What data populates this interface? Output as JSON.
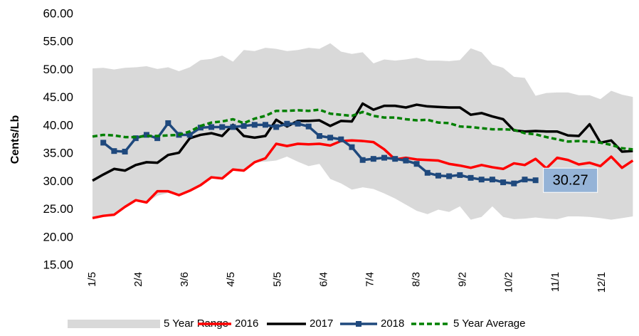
{
  "chart_data": {
    "type": "line",
    "y_label": "Cents/Lb",
    "x": [
      5,
      12,
      19,
      26,
      33,
      40,
      47,
      54,
      61,
      68,
      75,
      82,
      89,
      96,
      103,
      110,
      117,
      124,
      131,
      138,
      145,
      152,
      159,
      166,
      173,
      180,
      187,
      194,
      201,
      208,
      215,
      222,
      229,
      236,
      243,
      250,
      257,
      264,
      271,
      278,
      285,
      292,
      299,
      306,
      313,
      320,
      327,
      334,
      341,
      348,
      355
    ],
    "xlim": [
      5,
      359
    ],
    "xticks": [
      {
        "value": 5,
        "label": "1/5"
      },
      {
        "value": 35,
        "label": "2/4"
      },
      {
        "value": 65,
        "label": "3/6"
      },
      {
        "value": 95,
        "label": "4/5"
      },
      {
        "value": 125,
        "label": "5/5"
      },
      {
        "value": 155,
        "label": "6/4"
      },
      {
        "value": 185,
        "label": "7/4"
      },
      {
        "value": 215,
        "label": "8/3"
      },
      {
        "value": 245,
        "label": "9/2"
      },
      {
        "value": 275,
        "label": "10/2"
      },
      {
        "value": 305,
        "label": "11/1"
      },
      {
        "value": 335,
        "label": "12/1"
      }
    ],
    "ylim": [
      15,
      60
    ],
    "yticks": [
      {
        "value": 15,
        "label": "15.00"
      },
      {
        "value": 20,
        "label": "20.00"
      },
      {
        "value": 25,
        "label": "25.00"
      },
      {
        "value": 30,
        "label": "30.00"
      },
      {
        "value": 35,
        "label": "35.00"
      },
      {
        "value": 40,
        "label": "40.00"
      },
      {
        "value": 45,
        "label": "45.00"
      },
      {
        "value": 50,
        "label": "50.00"
      },
      {
        "value": 55,
        "label": "55.00"
      },
      {
        "value": 60,
        "label": "60.00"
      }
    ],
    "range": {
      "name": "5 Year Range",
      "color": "#d9d9d9",
      "upper": [
        50.3,
        50.4,
        50.1,
        50.4,
        50.5,
        50.7,
        50.2,
        50.5,
        49.8,
        50.5,
        51.8,
        52.0,
        52.6,
        51.5,
        53.6,
        53.4,
        54.0,
        53.8,
        53.4,
        53.6,
        54.0,
        53.8,
        54.8,
        53.3,
        52.9,
        53.2,
        51.2,
        51.9,
        51.7,
        51.9,
        52.2,
        51.7,
        51.7,
        51.6,
        51.8,
        53.9,
        53.2,
        51.0,
        50.4,
        48.8,
        48.6,
        45.4,
        45.9,
        46.0,
        46.0,
        45.5,
        45.5,
        44.8,
        46.3,
        45.6,
        45.2
      ],
      "lower": [
        23.5,
        23.9,
        24.1,
        25.5,
        26.5,
        26.3,
        27.5,
        28.0,
        27.6,
        28.4,
        29.4,
        30.8,
        30.6,
        32.0,
        32.0,
        33.5,
        33.6,
        33.8,
        34.5,
        33.6,
        32.8,
        33.2,
        30.5,
        29.7,
        28.6,
        29.0,
        28.7,
        27.9,
        27.0,
        25.9,
        24.8,
        24.2,
        25.0,
        24.6,
        25.6,
        23.2,
        23.7,
        25.6,
        23.7,
        23.3,
        23.4,
        23.6,
        23.4,
        23.3,
        23.8,
        23.8,
        23.7,
        23.5,
        23.2,
        23.5,
        23.8
      ]
    },
    "series": [
      {
        "name": "2016",
        "color": "#ff0000",
        "values": [
          23.5,
          23.9,
          24.1,
          25.5,
          26.7,
          26.3,
          28.3,
          28.3,
          27.6,
          28.4,
          29.4,
          30.8,
          30.6,
          32.2,
          32.0,
          33.5,
          34.2,
          36.8,
          36.4,
          36.8,
          36.7,
          36.8,
          36.5,
          37.3,
          37.4,
          37.3,
          37.1,
          35.8,
          34.0,
          34.3,
          34.0,
          33.9,
          33.8,
          33.2,
          32.9,
          32.5,
          33.0,
          32.6,
          32.3,
          33.3,
          33.0,
          34.1,
          32.4,
          34.3,
          33.9,
          33.1,
          33.4,
          32.8,
          34.5,
          32.5,
          33.8
        ]
      },
      {
        "name": "2017",
        "color": "#000000",
        "values": [
          30.2,
          31.3,
          32.3,
          32.0,
          33.0,
          33.5,
          33.4,
          34.8,
          35.2,
          37.8,
          38.4,
          38.7,
          38.2,
          40.2,
          38.2,
          37.9,
          38.2,
          41.1,
          39.9,
          40.9,
          40.9,
          41.0,
          40.0,
          40.9,
          40.8,
          44.0,
          42.9,
          43.6,
          43.6,
          43.3,
          43.8,
          43.5,
          43.4,
          43.3,
          43.3,
          42.0,
          42.3,
          41.7,
          41.2,
          39.2,
          39.0,
          39.1,
          39.0,
          39.0,
          38.3,
          38.2,
          40.3,
          37.0,
          37.4,
          35.4,
          35.5
        ]
      },
      {
        "name": "2018",
        "color": "#1f497d",
        "marker": "square",
        "values": [
          null,
          37.0,
          35.5,
          35.4,
          37.8,
          38.4,
          37.8,
          40.5,
          38.4,
          38.4,
          39.7,
          39.8,
          39.8,
          39.8,
          40.0,
          40.2,
          40.2,
          39.8,
          40.4,
          40.4,
          39.9,
          38.2,
          37.9,
          37.6,
          36.2,
          33.9,
          34.1,
          34.3,
          34.1,
          33.8,
          33.2,
          31.6,
          31.1,
          31.0,
          31.2,
          30.7,
          30.4,
          30.4,
          29.9,
          29.7,
          30.4,
          30.27,
          null,
          null,
          null,
          null,
          null,
          null,
          null,
          null,
          null
        ],
        "value_labels": [
          null,
          null,
          null,
          null,
          null,
          null,
          null,
          null,
          null,
          null,
          null,
          null,
          null,
          null,
          null,
          null,
          null,
          null,
          null,
          null,
          null,
          null,
          null,
          null,
          null,
          null,
          null,
          null,
          null,
          null,
          null,
          null,
          null,
          null,
          null,
          null,
          null,
          null,
          null,
          null,
          null,
          "30.27",
          null,
          null,
          null,
          null,
          null,
          null,
          null,
          null,
          null
        ]
      },
      {
        "name": "5 Year Average",
        "color": "#008000",
        "dash": true,
        "values": [
          38.1,
          38.4,
          38.3,
          38.0,
          38.0,
          38.2,
          38.2,
          38.3,
          38.4,
          39.0,
          40.0,
          40.6,
          40.8,
          41.2,
          40.5,
          41.3,
          41.8,
          42.7,
          42.7,
          42.8,
          42.7,
          42.9,
          42.2,
          42.0,
          41.8,
          42.5,
          41.8,
          41.5,
          41.5,
          41.2,
          41.0,
          41.1,
          40.6,
          40.5,
          39.9,
          39.8,
          39.6,
          39.4,
          39.4,
          39.3,
          38.7,
          38.5,
          38.0,
          37.6,
          37.2,
          37.3,
          37.2,
          37.0,
          36.6,
          36.0,
          35.8
        ]
      }
    ]
  }
}
